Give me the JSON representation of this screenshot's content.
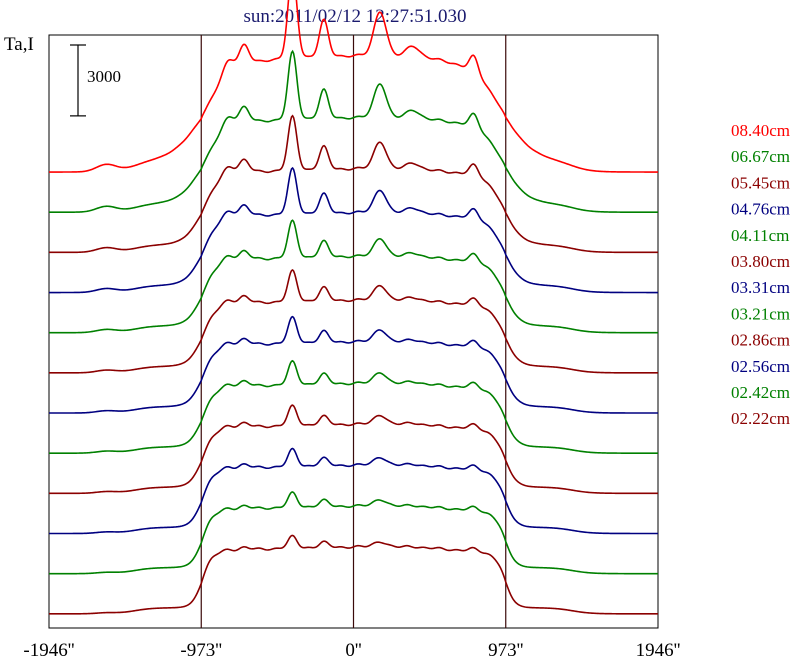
{
  "chart_data": {
    "type": "line",
    "title": "sun:2011/02/12 12:27:51.030",
    "ylabel": "Ta,I",
    "xlabel": "",
    "x_unit": "arcsec",
    "x_ticks": [
      -1946,
      -973,
      0,
      973,
      1946
    ],
    "x_tick_labels": [
      "-1946''",
      "-973''",
      "0''",
      "973''",
      "1946''"
    ],
    "xlim": [
      -1946,
      1946
    ],
    "vertical_lines_at": [
      -973,
      0,
      973
    ],
    "scale_bar": {
      "label": "3000",
      "value": 3000
    },
    "legend_position": "right",
    "stack_offset": 1700,
    "series": [
      {
        "name": "08.40cm",
        "color": "#ff0000",
        "baseline": 18700,
        "limb_width": 95,
        "profile_scale": 1.6,
        "emission": 1.0
      },
      {
        "name": "06.67cm",
        "color": "#008000",
        "baseline": 17000,
        "limb_width": 70,
        "profile_scale": 1.3,
        "emission": 0.78
      },
      {
        "name": "05.45cm",
        "color": "#8b0000",
        "baseline": 15300,
        "limb_width": 55,
        "profile_scale": 1.15,
        "emission": 0.62
      },
      {
        "name": "04.76cm",
        "color": "#000080",
        "baseline": 13600,
        "limb_width": 50,
        "profile_scale": 1.1,
        "emission": 0.52
      },
      {
        "name": "04.11cm",
        "color": "#008000",
        "baseline": 11900,
        "limb_width": 45,
        "profile_scale": 1.05,
        "emission": 0.42
      },
      {
        "name": "03.80cm",
        "color": "#8b0000",
        "baseline": 10200,
        "limb_width": 42,
        "profile_scale": 1.0,
        "emission": 0.35
      },
      {
        "name": "03.31cm",
        "color": "#000080",
        "baseline": 8500,
        "limb_width": 40,
        "profile_scale": 0.98,
        "emission": 0.29
      },
      {
        "name": "03.21cm",
        "color": "#008000",
        "baseline": 6800,
        "limb_width": 38,
        "profile_scale": 0.96,
        "emission": 0.26
      },
      {
        "name": "02.86cm",
        "color": "#8b0000",
        "baseline": 5100,
        "limb_width": 36,
        "profile_scale": 0.95,
        "emission": 0.22
      },
      {
        "name": "02.56cm",
        "color": "#000080",
        "baseline": 3400,
        "limb_width": 34,
        "profile_scale": 0.94,
        "emission": 0.19
      },
      {
        "name": "02.42cm",
        "color": "#008000",
        "baseline": 1700,
        "limb_width": 32,
        "profile_scale": 0.93,
        "emission": 0.16
      },
      {
        "name": "02.22cm",
        "color": "#8b0000",
        "baseline": 0,
        "limb_width": 30,
        "profile_scale": 0.92,
        "emission": 0.13
      }
    ],
    "peaks": [
      {
        "x": -1580,
        "width": 90,
        "amp": 300
      },
      {
        "x": -800,
        "width": 55,
        "amp": 700
      },
      {
        "x": -700,
        "width": 45,
        "amp": 900
      },
      {
        "x": -390,
        "width": 40,
        "amp": 3600
      },
      {
        "x": -190,
        "width": 40,
        "amp": 1500
      },
      {
        "x": 170,
        "width": 55,
        "amp": 1900
      },
      {
        "x": 380,
        "width": 60,
        "amp": 500
      },
      {
        "x": 770,
        "width": 40,
        "amp": 700
      }
    ]
  },
  "view": {
    "ylim": [
      -600,
      24500
    ]
  }
}
